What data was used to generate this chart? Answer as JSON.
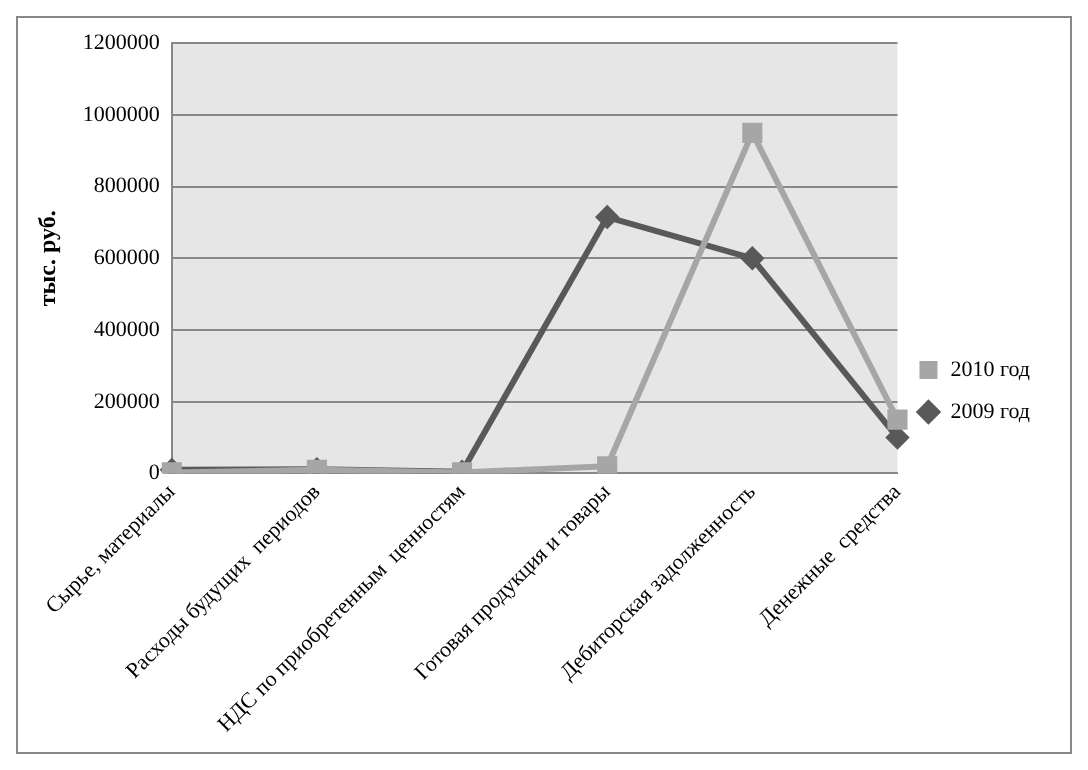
{
  "chart_data": {
    "type": "line",
    "ylabel": "тыс. руб.",
    "categories": [
      "Сырье, материалы",
      "Расходы будущих  периодов",
      "НДС по приобретенным  ценностям",
      "Готовая продукция и товары",
      "Дебиторская задолженность",
      "Денежные  средства"
    ],
    "series": [
      {
        "name": "2009 год",
        "color": "#595959",
        "marker": "diamond",
        "values": [
          10000,
          12000,
          5000,
          715000,
          600000,
          100000
        ]
      },
      {
        "name": "2010 год",
        "color": "#a6a6a6",
        "marker": "square",
        "values": [
          3000,
          10000,
          3000,
          20000,
          950000,
          150000
        ]
      }
    ],
    "ylim": [
      0,
      1200000
    ],
    "yticks": [
      0,
      200000,
      400000,
      600000,
      800000,
      1000000,
      1200000
    ],
    "grid": "y",
    "legend": "right"
  }
}
